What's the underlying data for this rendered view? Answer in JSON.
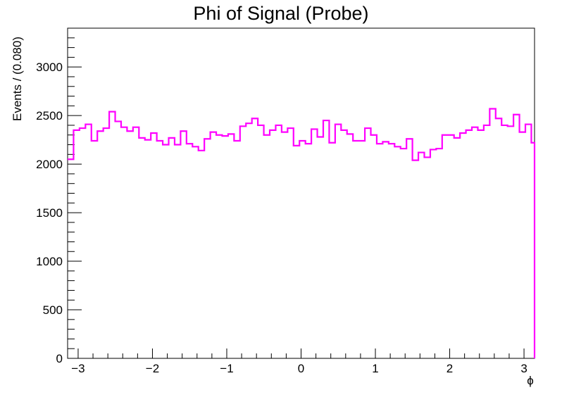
{
  "chart_data": {
    "type": "histogram",
    "title": "Phi of Signal (Probe)",
    "xlabel": "ϕ",
    "ylabel": "Events / (0.080)",
    "xlim": [
      -3.1416,
      3.1416
    ],
    "ylim": [
      0,
      3400
    ],
    "bin_width": 0.08,
    "x_ticks": [
      -3,
      -2,
      -1,
      0,
      1,
      2,
      3
    ],
    "x_tick_labels": [
      "−3",
      "−2",
      "−1",
      "0",
      "1",
      "2",
      "3"
    ],
    "y_ticks": [
      0,
      500,
      1000,
      1500,
      2000,
      2500,
      3000
    ],
    "y_tick_labels": [
      "0",
      "500",
      "1000",
      "1500",
      "2000",
      "2500",
      "3000"
    ],
    "grid": false,
    "line_color": "#ff00ff",
    "series": [
      {
        "values": [
          2050,
          2350,
          2370,
          2410,
          2240,
          2340,
          2370,
          2540,
          2440,
          2380,
          2340,
          2380,
          2270,
          2250,
          2320,
          2240,
          2200,
          2270,
          2200,
          2340,
          2210,
          2180,
          2140,
          2260,
          2330,
          2300,
          2290,
          2310,
          2240,
          2390,
          2420,
          2470,
          2400,
          2300,
          2350,
          2400,
          2330,
          2370,
          2190,
          2240,
          2210,
          2360,
          2280,
          2450,
          2220,
          2410,
          2350,
          2310,
          2240,
          2240,
          2370,
          2300,
          2210,
          2230,
          2210,
          2180,
          2160,
          2260,
          2040,
          2120,
          2070,
          2150,
          2160,
          2300,
          2300,
          2270,
          2320,
          2350,
          2380,
          2350,
          2400,
          2570,
          2470,
          2400,
          2390,
          2510,
          2330,
          2410,
          2220
        ]
      }
    ]
  }
}
